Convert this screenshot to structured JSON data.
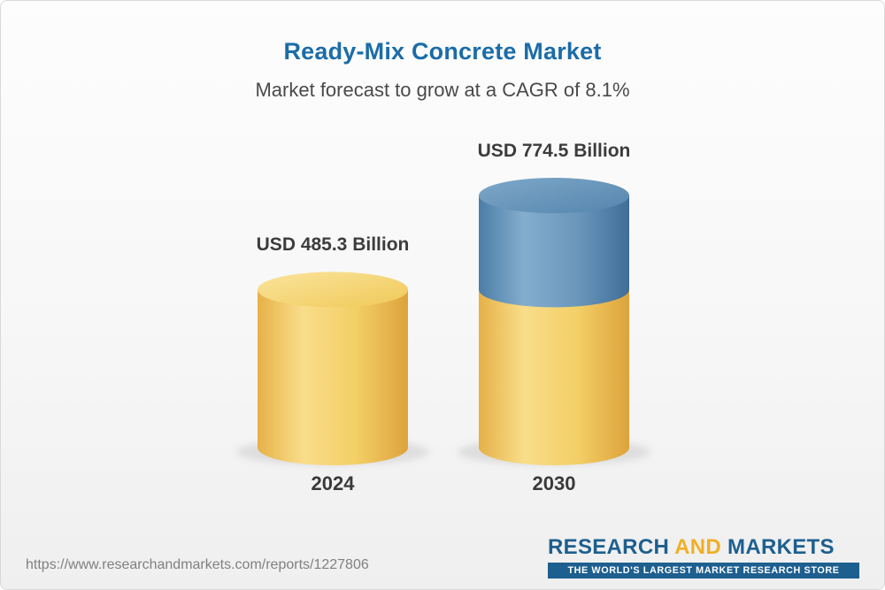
{
  "header": {
    "title": "Ready-Mix Concrete Market",
    "subtitle": "Market forecast to grow at a CAGR of 8.1%"
  },
  "chart_data": {
    "type": "bar",
    "variant": "3d-cylinder",
    "title": "Ready-Mix Concrete Market",
    "subtitle": "Market forecast to grow at a CAGR of 8.1%",
    "cagr_percent": 8.1,
    "unit": "USD Billion",
    "categories": [
      "2024",
      "2030"
    ],
    "values": [
      485.3,
      774.5
    ],
    "value_labels": [
      "USD 485.3 Billion",
      "USD 774.5 Billion"
    ],
    "legend": "none",
    "grid": false,
    "colors": {
      "base_segment": "#F2CA62",
      "growth_segment": "#5E8DB4",
      "title_text": "#1B6CA8",
      "label_text": "#3C3C3C"
    },
    "notes": "2030 cylinder shows the 2024 base value in gold with the incremental growth to 774.5 shown as a blue top segment"
  },
  "footer": {
    "url": "https://www.researchandmarkets.com/reports/1227806",
    "logo": {
      "research": "RESEARCH",
      "and": "AND",
      "markets": "MARKETS",
      "tagline": "THE WORLD'S LARGEST MARKET RESEARCH STORE"
    }
  }
}
